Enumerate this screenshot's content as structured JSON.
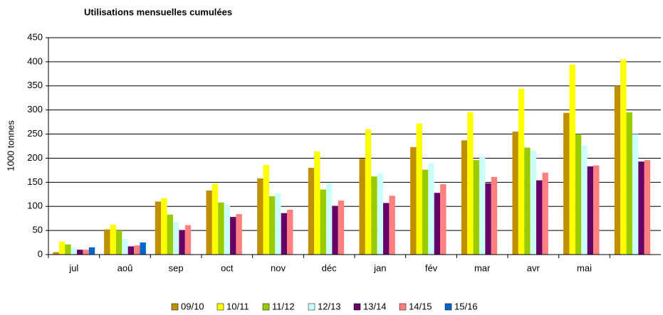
{
  "chart_data": {
    "type": "bar",
    "title": "Utilisations mensuelles cumulées",
    "y_label": "1000 tonnes",
    "categories": [
      "jul",
      "aoû",
      "sep",
      "oct",
      "nov",
      "déc",
      "jan",
      "fév",
      "mar",
      "avr",
      "mai",
      null
    ],
    "series": [
      {
        "name": "09/10",
        "color": "#c09000",
        "values": [
          5,
          52,
          110,
          133,
          158,
          180,
          199,
          223,
          237,
          255,
          294,
          350
        ]
      },
      {
        "name": "10/11",
        "color": "#ffff00",
        "values": [
          27,
          62,
          117,
          147,
          186,
          214,
          260,
          272,
          295,
          344,
          394,
          405
        ]
      },
      {
        "name": "11/12",
        "color": "#99cc00",
        "values": [
          21,
          50,
          83,
          108,
          121,
          135,
          162,
          176,
          196,
          222,
          250,
          295
        ]
      },
      {
        "name": "12/13",
        "color": "#ccffff",
        "values": [
          15,
          33,
          68,
          104,
          127,
          148,
          168,
          190,
          204,
          215,
          226,
          250
        ]
      },
      {
        "name": "13/14",
        "color": "#660066",
        "values": [
          10,
          17,
          51,
          78,
          86,
          101,
          107,
          128,
          148,
          154,
          183,
          193
        ]
      },
      {
        "name": "14/15",
        "color": "#ff8080",
        "values": [
          10,
          19,
          61,
          84,
          93,
          112,
          122,
          146,
          161,
          170,
          185,
          196
        ]
      },
      {
        "name": "15/16",
        "color": "#0066cc",
        "values": [
          15,
          25,
          null,
          null,
          null,
          null,
          null,
          null,
          null,
          null,
          null,
          null
        ]
      }
    ],
    "ylim": [
      0,
      450
    ],
    "yticks": [
      0,
      50,
      100,
      150,
      200,
      250,
      300,
      350,
      400,
      450
    ],
    "grid": true,
    "legend": "bottom"
  }
}
